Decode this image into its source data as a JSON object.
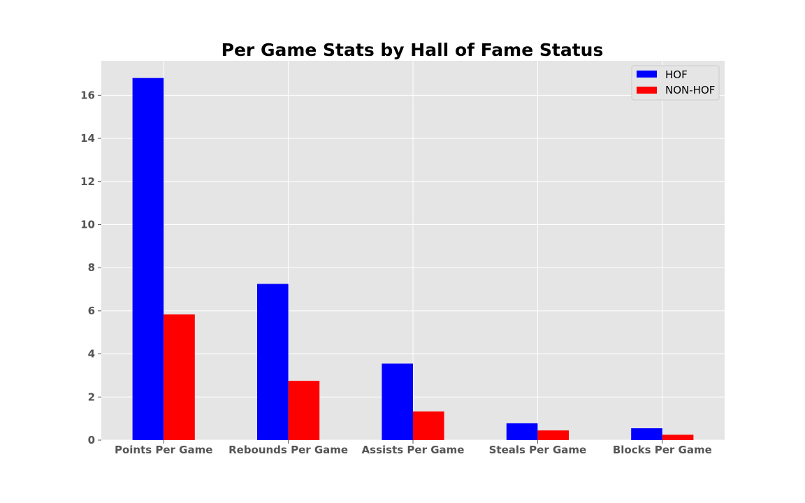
{
  "chart_data": {
    "type": "bar",
    "title": "Per Game Stats by Hall of Fame Status",
    "xlabel": "",
    "ylabel": "",
    "categories": [
      "Points Per Game",
      "Rebounds Per Game",
      "Assists Per Game",
      "Steals Per Game",
      "Blocks Per Game"
    ],
    "series": [
      {
        "name": "HOF",
        "color": "#0000ff",
        "values": [
          16.8,
          7.25,
          3.55,
          0.78,
          0.55
        ]
      },
      {
        "name": "NON-HOF",
        "color": "#ff0000",
        "values": [
          5.83,
          2.75,
          1.33,
          0.45,
          0.25
        ]
      }
    ],
    "yticks": [
      0,
      2,
      4,
      6,
      8,
      10,
      12,
      14,
      16
    ],
    "ylim": [
      0,
      17.6
    ],
    "grid": true,
    "legend": "top-right",
    "background": "#e5e5e5",
    "grid_color": "#ffffff"
  }
}
